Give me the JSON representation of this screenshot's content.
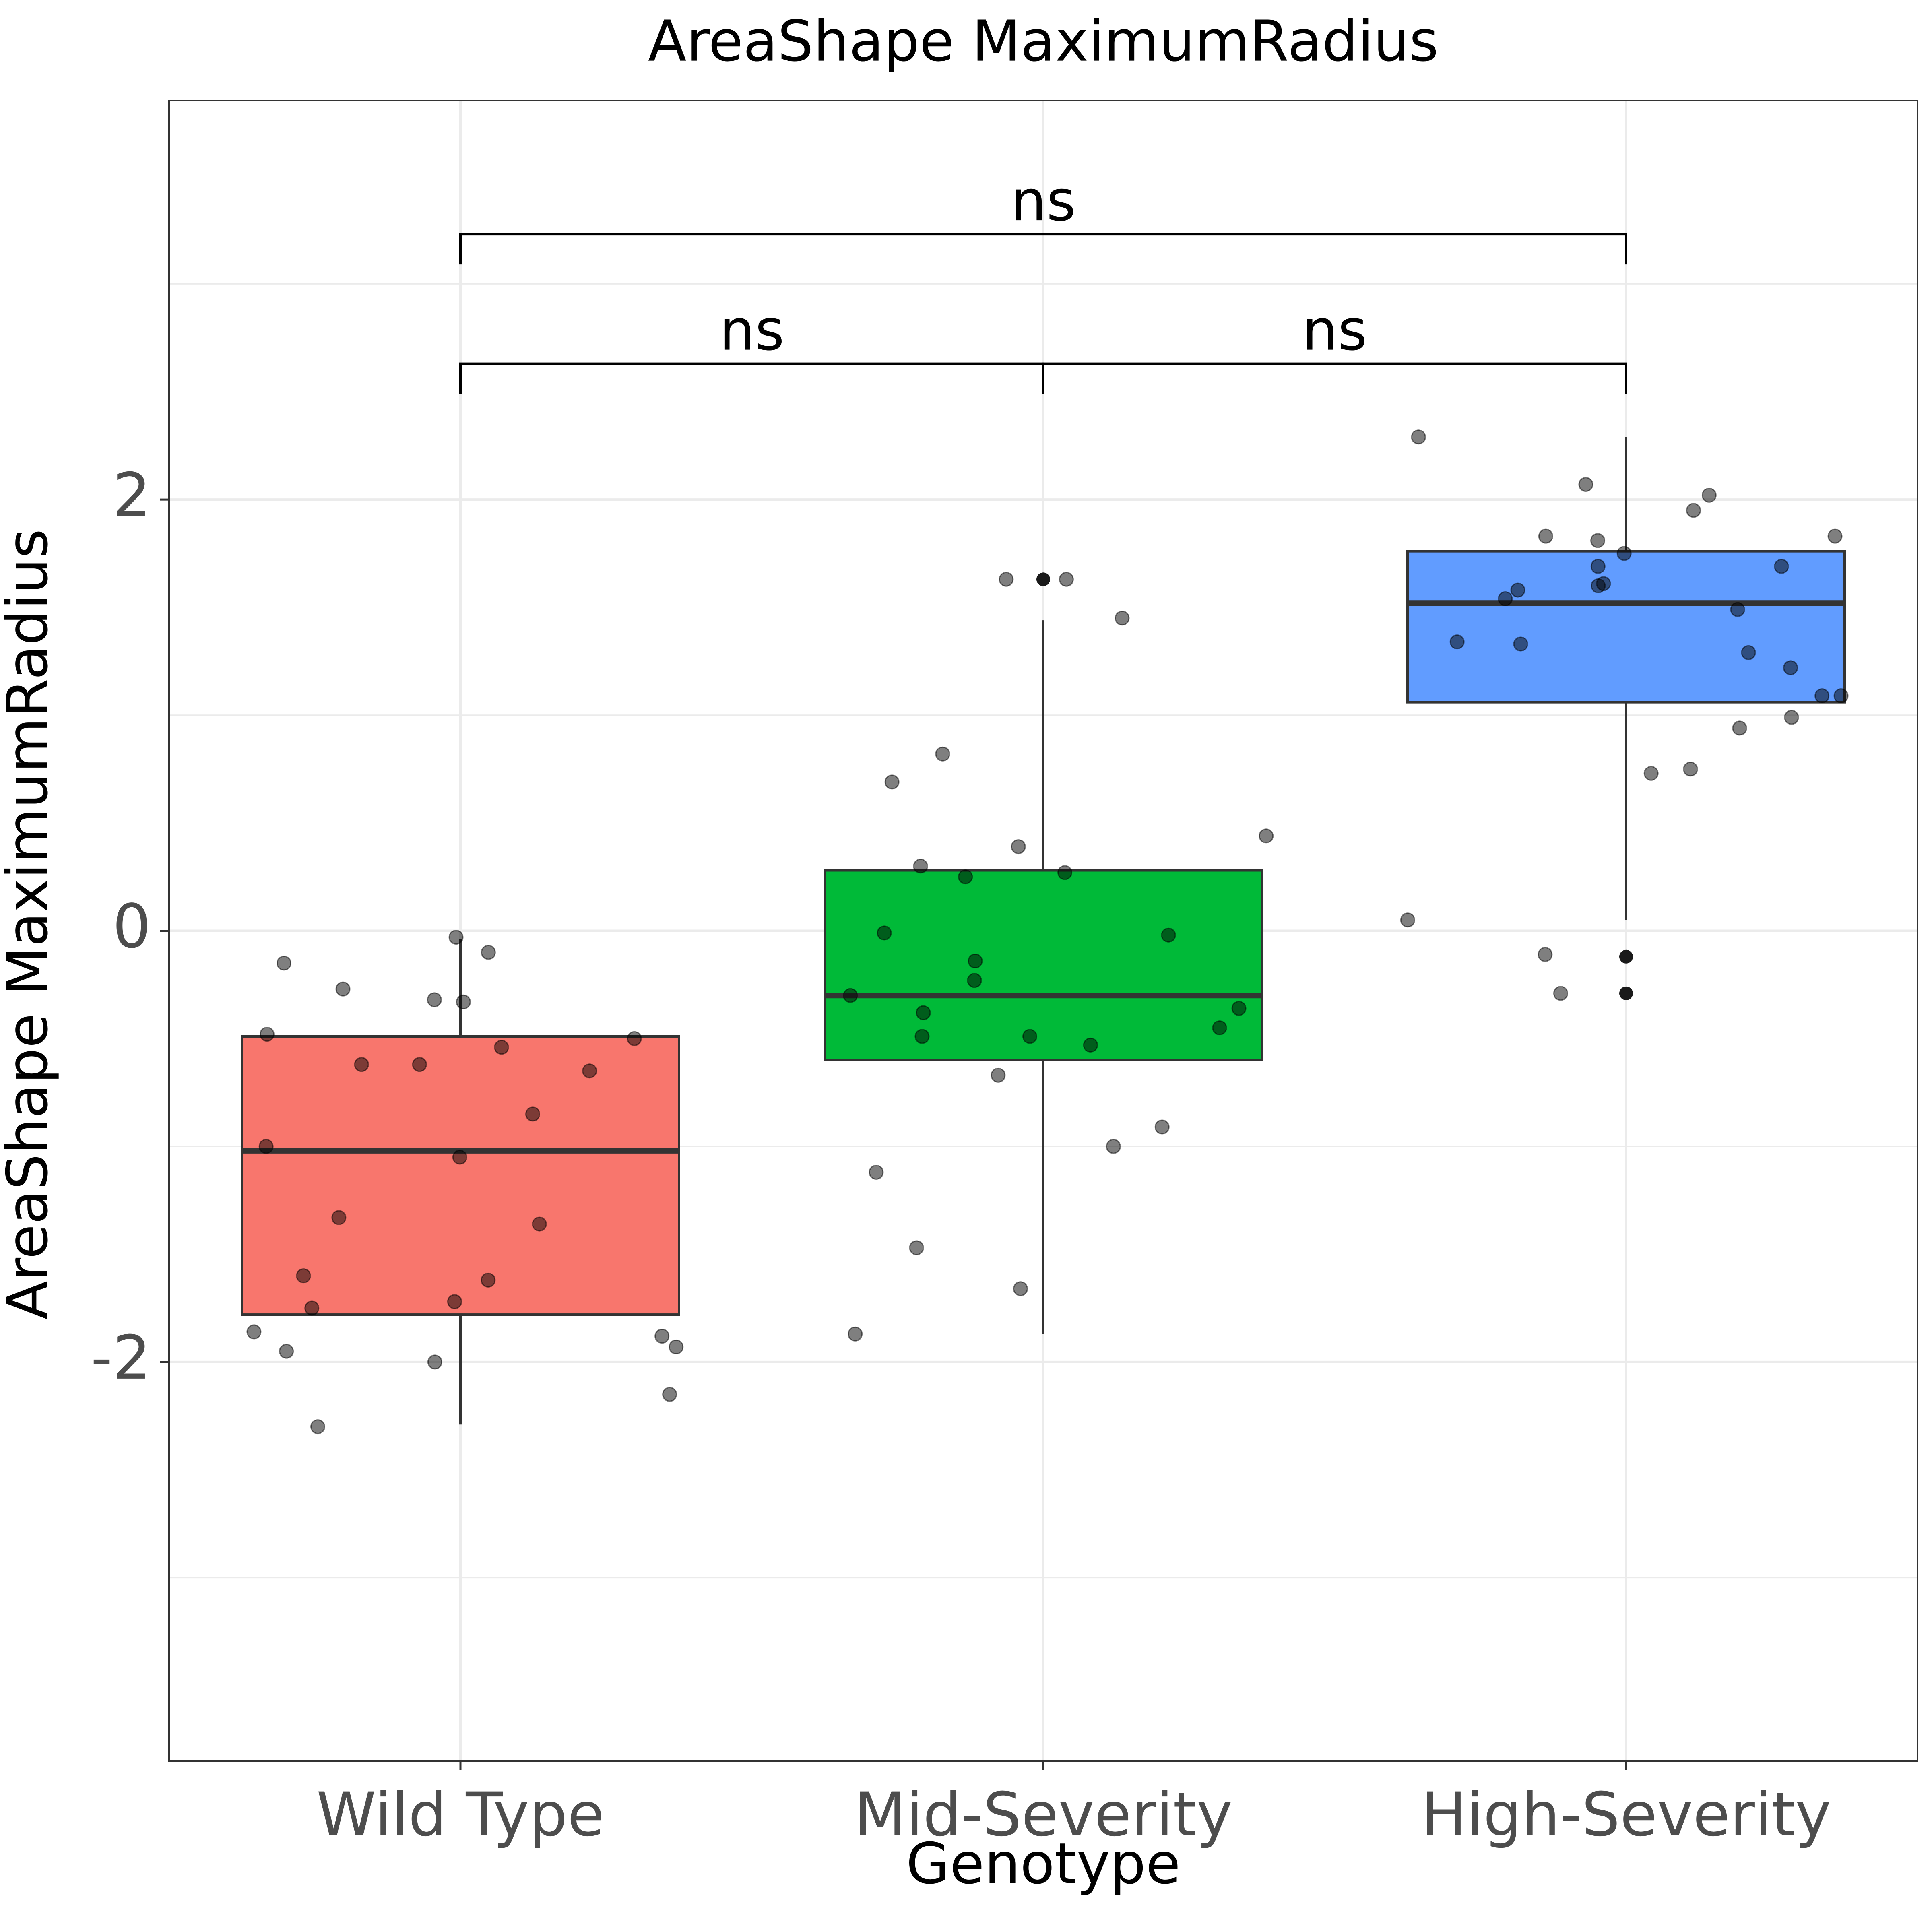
{
  "chart_data": {
    "type": "box",
    "title": "AreaShape MaximumRadius",
    "xlabel": "Genotype",
    "ylabel": "AreaShape MaximumRadius",
    "ylim": [
      -3.85,
      3.85
    ],
    "yticks": [
      -2,
      0,
      2
    ],
    "grid": true,
    "categories": [
      "Wild Type",
      "Mid-Severity",
      "High-Severity"
    ],
    "colors": {
      "Wild Type": "#F8766D",
      "Mid-Severity": "#00BA38",
      "High-Severity": "#619CFF"
    },
    "boxes": [
      {
        "category": "Wild Type",
        "q1": -1.78,
        "median": -1.02,
        "q3": -0.49,
        "whisker_low": -2.29,
        "whisker_high": -0.04,
        "outliers": []
      },
      {
        "category": "Mid-Severity",
        "q1": -0.6,
        "median": -0.3,
        "q3": 0.28,
        "whisker_low": -1.87,
        "whisker_high": 1.44,
        "outliers": [
          1.63
        ]
      },
      {
        "category": "High-Severity",
        "q1": 1.06,
        "median": 1.52,
        "q3": 1.76,
        "whisker_low": 0.05,
        "whisker_high": 2.29,
        "outliers": [
          -0.12,
          -0.29
        ]
      }
    ],
    "points": [
      {
        "category": "Wild Type",
        "values": [
          -0.03,
          -0.1,
          -0.15,
          -0.27,
          -0.32,
          -0.33,
          -0.48,
          -0.5,
          -0.54,
          -0.62,
          -0.62,
          -0.65,
          -0.85,
          -1.0,
          -1.05,
          -1.33,
          -1.36,
          -1.6,
          -1.62,
          -1.72,
          -1.75,
          -1.86,
          -1.88,
          -1.93,
          -1.95,
          -2.0,
          -2.15,
          -2.3
        ]
      },
      {
        "category": "Mid-Severity",
        "values": [
          1.63,
          1.63,
          1.45,
          0.82,
          0.69,
          0.44,
          0.39,
          0.3,
          0.27,
          0.25,
          -0.01,
          -0.02,
          -0.14,
          -0.23,
          -0.3,
          -0.36,
          -0.38,
          -0.45,
          -0.49,
          -0.49,
          -0.53,
          -0.67,
          -0.91,
          -1.0,
          -1.12,
          -1.47,
          -1.66,
          -1.87
        ]
      },
      {
        "category": "High-Severity",
        "values": [
          2.29,
          2.07,
          2.02,
          1.95,
          1.83,
          1.83,
          1.81,
          1.75,
          1.69,
          1.69,
          1.61,
          1.6,
          1.58,
          1.54,
          1.49,
          1.34,
          1.33,
          1.29,
          1.22,
          1.09,
          1.09,
          0.99,
          0.94,
          0.75,
          0.73,
          0.05,
          -0.11,
          -0.29
        ]
      }
    ],
    "comparisons": [
      {
        "from": "Wild Type",
        "to": "Mid-Severity",
        "label": "ns",
        "y": 2.63
      },
      {
        "from": "Mid-Severity",
        "to": "High-Severity",
        "label": "ns",
        "y": 2.63
      },
      {
        "from": "Wild Type",
        "to": "High-Severity",
        "label": "ns",
        "y": 3.23
      }
    ]
  }
}
